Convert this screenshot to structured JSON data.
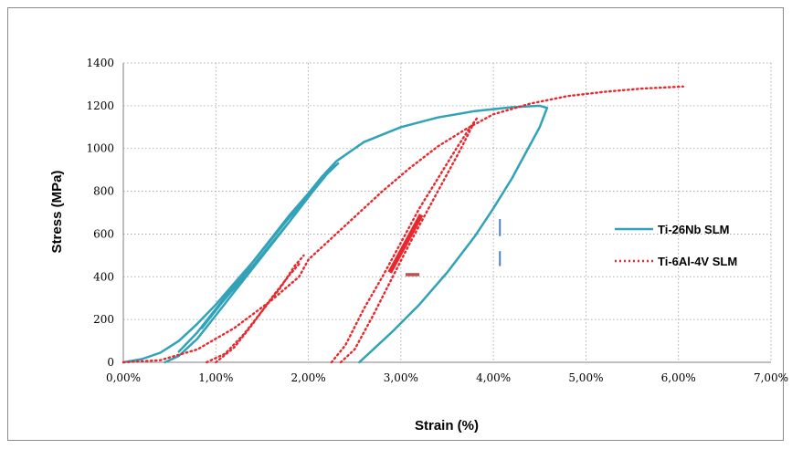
{
  "chart_data": {
    "type": "line",
    "xlabel": "Strain (%)",
    "ylabel": "Stress (MPa)",
    "xlim": [
      0,
      7
    ],
    "ylim": [
      0,
      1400
    ],
    "x_ticks": [
      "0,00%",
      "1,00%",
      "2,00%",
      "3,00%",
      "4,00%",
      "5,00%",
      "6,00%",
      "7,00%"
    ],
    "y_ticks": [
      "0",
      "200",
      "400",
      "600",
      "800",
      "1000",
      "1200",
      "1400"
    ],
    "grid": "dotted",
    "legend": "right",
    "series": [
      {
        "name": "Ti-26Nb SLM",
        "color": "#31A2B8",
        "style": "solid",
        "points": [
          [
            0,
            0
          ],
          [
            0.2,
            15
          ],
          [
            0.4,
            45
          ],
          [
            0.6,
            100
          ],
          [
            0.8,
            180
          ],
          [
            1.0,
            270
          ],
          [
            1.2,
            370
          ],
          [
            1.4,
            470
          ],
          [
            1.6,
            575
          ],
          [
            1.8,
            680
          ],
          [
            2.0,
            790
          ],
          [
            2.15,
            870
          ],
          [
            2.3,
            940
          ],
          [
            2.6,
            1030
          ],
          [
            3.0,
            1100
          ],
          [
            3.4,
            1145
          ],
          [
            3.8,
            1175
          ],
          [
            4.2,
            1193
          ],
          [
            4.5,
            1200
          ],
          [
            4.58,
            1190
          ],
          [
            4.5,
            1100
          ],
          [
            4.35,
            980
          ],
          [
            4.2,
            860
          ],
          [
            4.0,
            720
          ],
          [
            3.8,
            590
          ],
          [
            3.5,
            420
          ],
          [
            3.2,
            270
          ],
          [
            2.9,
            140
          ],
          [
            2.7,
            60
          ],
          [
            2.55,
            0
          ],
          null,
          [
            0.45,
            0
          ],
          [
            0.6,
            30
          ],
          [
            0.8,
            110
          ],
          [
            1.0,
            220
          ],
          [
            1.2,
            330
          ],
          [
            1.4,
            440
          ],
          [
            1.6,
            550
          ],
          [
            1.8,
            660
          ],
          [
            2.0,
            780
          ],
          [
            2.15,
            860
          ],
          [
            2.3,
            940
          ],
          null,
          [
            0.6,
            50
          ],
          [
            0.8,
            140
          ],
          [
            1.0,
            250
          ],
          [
            1.2,
            360
          ],
          [
            1.4,
            470
          ],
          [
            1.6,
            580
          ],
          [
            1.8,
            690
          ],
          [
            2.0,
            790
          ],
          [
            2.15,
            860
          ],
          [
            2.3,
            940
          ],
          null,
          [
            0.85,
            160
          ],
          [
            1.05,
            270
          ],
          [
            1.3,
            400
          ],
          [
            1.55,
            530
          ],
          [
            1.8,
            660
          ],
          [
            2.05,
            800
          ],
          [
            2.2,
            880
          ],
          [
            2.32,
            930
          ]
        ]
      },
      {
        "name": "Ti-6Al-4V SLM",
        "color": "#E8282D",
        "style": "dotted",
        "points": [
          [
            0,
            0
          ],
          [
            0.4,
            10
          ],
          [
            0.8,
            60
          ],
          [
            1.2,
            160
          ],
          [
            1.6,
            290
          ],
          [
            1.9,
            400
          ],
          [
            2.0,
            480
          ],
          [
            2.2,
            560
          ],
          [
            2.5,
            680
          ],
          [
            2.8,
            800
          ],
          [
            3.1,
            910
          ],
          [
            3.4,
            1010
          ],
          [
            3.7,
            1090
          ],
          [
            4.0,
            1160
          ],
          [
            4.4,
            1210
          ],
          [
            4.8,
            1245
          ],
          [
            5.2,
            1265
          ],
          [
            5.6,
            1280
          ],
          [
            6.05,
            1290
          ],
          null,
          [
            0.9,
            0
          ],
          [
            1.1,
            40
          ],
          [
            1.3,
            130
          ],
          [
            1.5,
            240
          ],
          [
            1.7,
            350
          ],
          [
            1.85,
            450
          ],
          [
            1.95,
            500
          ],
          null,
          [
            1.0,
            0
          ],
          [
            1.2,
            70
          ],
          [
            1.4,
            180
          ],
          [
            1.6,
            300
          ],
          [
            1.8,
            410
          ],
          [
            1.92,
            470
          ],
          null,
          [
            2.25,
            0
          ],
          [
            2.4,
            80
          ],
          [
            2.6,
            250
          ],
          [
            2.8,
            400
          ],
          [
            3.0,
            560
          ],
          [
            3.2,
            720
          ],
          [
            3.4,
            860
          ],
          [
            3.6,
            1000
          ],
          [
            3.75,
            1100
          ],
          [
            3.82,
            1140
          ],
          null,
          [
            2.35,
            0
          ],
          [
            2.5,
            60
          ],
          [
            2.7,
            220
          ],
          [
            2.9,
            390
          ],
          [
            3.1,
            560
          ],
          [
            3.3,
            720
          ],
          [
            3.5,
            880
          ],
          [
            3.65,
            1000
          ],
          [
            3.8,
            1130
          ]
        ]
      }
    ],
    "annotations": [
      {
        "kind": "segment",
        "color": "#E8282D",
        "from": [
          2.88,
          420
        ],
        "to": [
          3.22,
          690
        ],
        "width": "thick"
      },
      {
        "kind": "segment",
        "color": "#C0504D",
        "from": [
          3.05,
          410
        ],
        "to": [
          3.2,
          410
        ],
        "width": "medium"
      },
      {
        "kind": "segment",
        "color": "#4F81BD",
        "from": [
          4.07,
          590
        ],
        "to": [
          4.07,
          670
        ],
        "width": "thin"
      },
      {
        "kind": "segment",
        "color": "#4F81BD",
        "from": [
          4.07,
          450
        ],
        "to": [
          4.07,
          520
        ],
        "width": "thin"
      }
    ]
  }
}
